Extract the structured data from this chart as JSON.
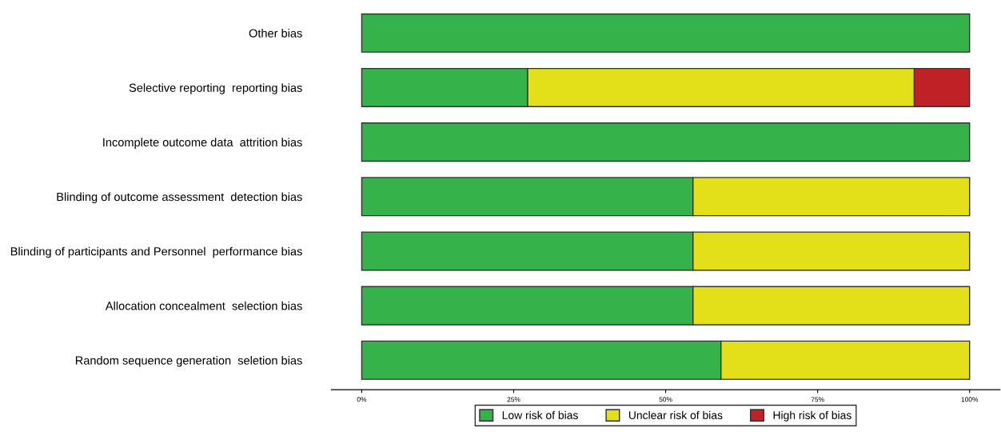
{
  "chart_data": {
    "type": "bar",
    "orientation": "horizontal",
    "stacked": true,
    "categories": [
      "Other bias",
      "Selective reporting  reporting bias",
      "Incomplete outcome data  attrition bias",
      "Blinding of outcome assessment  detection bias",
      "Blinding of participants and Personnel  performance bias",
      "Allocation concealment  selection bias",
      "Random sequence generation  seletion bias"
    ],
    "series": [
      {
        "name": "Low risk of bias",
        "color": "#35b24a",
        "values": [
          100,
          27.3,
          100,
          54.5,
          54.5,
          54.5,
          59.1
        ]
      },
      {
        "name": "Unclear risk of bias",
        "color": "#e3e01a",
        "values": [
          0,
          63.6,
          0,
          45.5,
          45.5,
          45.5,
          40.9
        ]
      },
      {
        "name": "High risk of bias",
        "color": "#c02126",
        "values": [
          0,
          9.1,
          0,
          0,
          0,
          0,
          0
        ]
      }
    ],
    "xlim": [
      -5,
      105
    ],
    "xticks": [
      {
        "value": 0,
        "label": "0%"
      },
      {
        "value": 25,
        "label": "25%"
      },
      {
        "value": 50,
        "label": "50%"
      },
      {
        "value": 75,
        "label": "75%"
      },
      {
        "value": 100,
        "label": "100%"
      }
    ],
    "grid": false,
    "legend": "bottom"
  }
}
